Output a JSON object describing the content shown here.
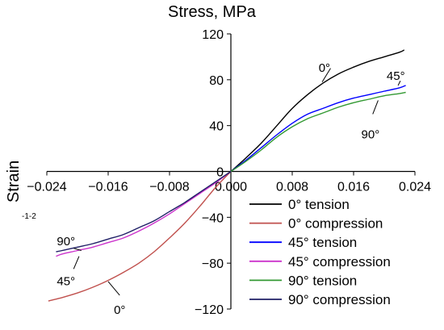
{
  "chart_data": {
    "type": "line",
    "title": "Stress, MPa",
    "xlabel": "",
    "ylabel": "Strain",
    "xlim": [
      -0.024,
      0.024
    ],
    "ylim": [
      -120,
      120
    ],
    "grid": false,
    "legend_position": "bottom-right",
    "side_note": "-1-2",
    "x_ticks": [
      "-0.024",
      "-0.016",
      "-0.008",
      "0.000",
      "0.008",
      "0.016",
      "0.024"
    ],
    "y_ticks": [
      "120",
      "80",
      "40",
      "0",
      "-40",
      "-80",
      "-120"
    ],
    "annotations": [
      {
        "text": "0°",
        "x": 0.0122,
        "y": 91
      },
      {
        "text": "45°",
        "x": 0.0215,
        "y": 84
      },
      {
        "text": "90°",
        "x": 0.0182,
        "y": 33
      },
      {
        "text": "90°",
        "x": -0.0215,
        "y": -60
      },
      {
        "text": "45°",
        "x": -0.0215,
        "y": -95
      },
      {
        "text": "0°",
        "x": -0.0145,
        "y": -120
      }
    ],
    "leaders": [
      {
        "series": "0° tension",
        "from": [
          0.0119,
          78
        ],
        "to": [
          0.013,
          90
        ]
      },
      {
        "series": "45° tension",
        "from": [
          0.0218,
          75
        ],
        "to": [
          0.0221,
          79
        ]
      },
      {
        "series": "90° tension",
        "from": [
          0.0192,
          62
        ],
        "to": [
          0.0185,
          50
        ]
      },
      {
        "series": "90° compression",
        "from": [
          -0.0205,
          -67
        ],
        "to": [
          -0.0195,
          -69
        ]
      },
      {
        "series": "45° compression",
        "from": [
          -0.0205,
          -85
        ],
        "to": [
          -0.0198,
          -74
        ]
      },
      {
        "series": "0° compression",
        "from": [
          -0.016,
          -96
        ],
        "to": [
          -0.0145,
          -108
        ]
      }
    ],
    "series": [
      {
        "name": "0° tension",
        "color": "#000000",
        "x": [
          0,
          0.002,
          0.004,
          0.006,
          0.008,
          0.01,
          0.012,
          0.014,
          0.016,
          0.018,
          0.02,
          0.022,
          0.0226
        ],
        "y": [
          0,
          12,
          25,
          40,
          55,
          67,
          77,
          85,
          91,
          96,
          100,
          104,
          106
        ]
      },
      {
        "name": "0° compression",
        "color": "#c0504d",
        "x": [
          0,
          -0.002,
          -0.004,
          -0.006,
          -0.008,
          -0.01,
          -0.012,
          -0.014,
          -0.016,
          -0.018,
          -0.02,
          -0.022,
          -0.0238
        ],
        "y": [
          0,
          -14,
          -30,
          -45,
          -58,
          -70,
          -80,
          -88,
          -95,
          -101,
          -106,
          -110,
          -113
        ]
      },
      {
        "name": "45° tension",
        "color": "#0000ff",
        "x": [
          0,
          0.002,
          0.004,
          0.006,
          0.008,
          0.01,
          0.012,
          0.014,
          0.016,
          0.018,
          0.02,
          0.022,
          0.0228
        ],
        "y": [
          0,
          10,
          21,
          32,
          42,
          50,
          55,
          60,
          64,
          67,
          70,
          73,
          75
        ]
      },
      {
        "name": "45° compression",
        "color": "#cc33cc",
        "x": [
          0,
          -0.002,
          -0.004,
          -0.006,
          -0.008,
          -0.01,
          -0.012,
          -0.014,
          -0.016,
          -0.018,
          -0.02,
          -0.022,
          -0.0228
        ],
        "y": [
          0,
          -10,
          -19,
          -28,
          -37,
          -45,
          -52,
          -58,
          -62,
          -66,
          -69,
          -72,
          -74
        ]
      },
      {
        "name": "90° tension",
        "color": "#339933",
        "x": [
          0,
          0.002,
          0.004,
          0.006,
          0.008,
          0.01,
          0.012,
          0.014,
          0.016,
          0.018,
          0.02,
          0.022,
          0.0228
        ],
        "y": [
          0,
          9,
          19,
          30,
          39,
          46,
          51,
          56,
          60,
          63,
          66,
          68,
          69
        ]
      },
      {
        "name": "90° compression",
        "color": "#1f1f66",
        "x": [
          0,
          -0.002,
          -0.004,
          -0.006,
          -0.008,
          -0.01,
          -0.012,
          -0.014,
          -0.016,
          -0.018,
          -0.02,
          -0.022,
          -0.0228
        ],
        "y": [
          0,
          -9,
          -18,
          -27,
          -35,
          -43,
          -49,
          -55,
          -59,
          -63,
          -66,
          -69,
          -70
        ]
      }
    ]
  }
}
